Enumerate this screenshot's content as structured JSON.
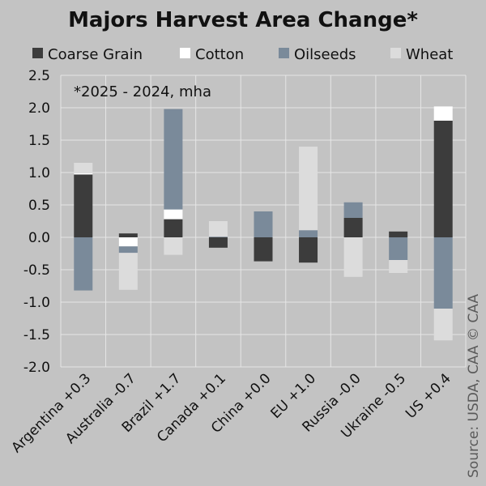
{
  "chart_data": {
    "type": "bar",
    "stacked": true,
    "title": "Majors Harvest Area Change*",
    "annotation": "*2025 - 2024, mha",
    "source": "Source: USDA, CAA  © CAA",
    "categories": [
      "Argentina +0.3",
      "Australia -0.7",
      "Brazil +1.7",
      "Canada +0.1",
      "China +0.0",
      "EU +1.0",
      "Russia -0.0",
      "Ukraine -0.5",
      "US +0.4"
    ],
    "ylim": [
      -2.0,
      2.5
    ],
    "yticks": [
      "2.5",
      "2.0",
      "1.5",
      "1.0",
      "0.5",
      "0.0",
      "-0.5",
      "-1.0",
      "-1.5",
      "-2.0"
    ],
    "grid": true,
    "legend_position": "top",
    "series": [
      {
        "name": "Coarse Grain",
        "color": "#3c3c3c",
        "values": [
          0.97,
          0.06,
          0.28,
          -0.16,
          -0.37,
          -0.39,
          0.3,
          0.09,
          1.8
        ]
      },
      {
        "name": "Cotton",
        "color": "#ffffff",
        "values": [
          0.02,
          -0.14,
          0.15,
          0.0,
          0.0,
          0.0,
          0.0,
          0.0,
          0.22
        ]
      },
      {
        "name": "Oilseeds",
        "color": "#7a8a9a",
        "values": [
          -0.82,
          -0.1,
          1.55,
          0.01,
          0.4,
          0.11,
          0.24,
          -0.35,
          -1.1
        ]
      },
      {
        "name": "Wheat",
        "color": "#dcdcdc",
        "values": [
          0.16,
          -0.57,
          -0.27,
          0.24,
          0.0,
          1.29,
          -0.61,
          -0.2,
          -0.49
        ]
      }
    ]
  }
}
